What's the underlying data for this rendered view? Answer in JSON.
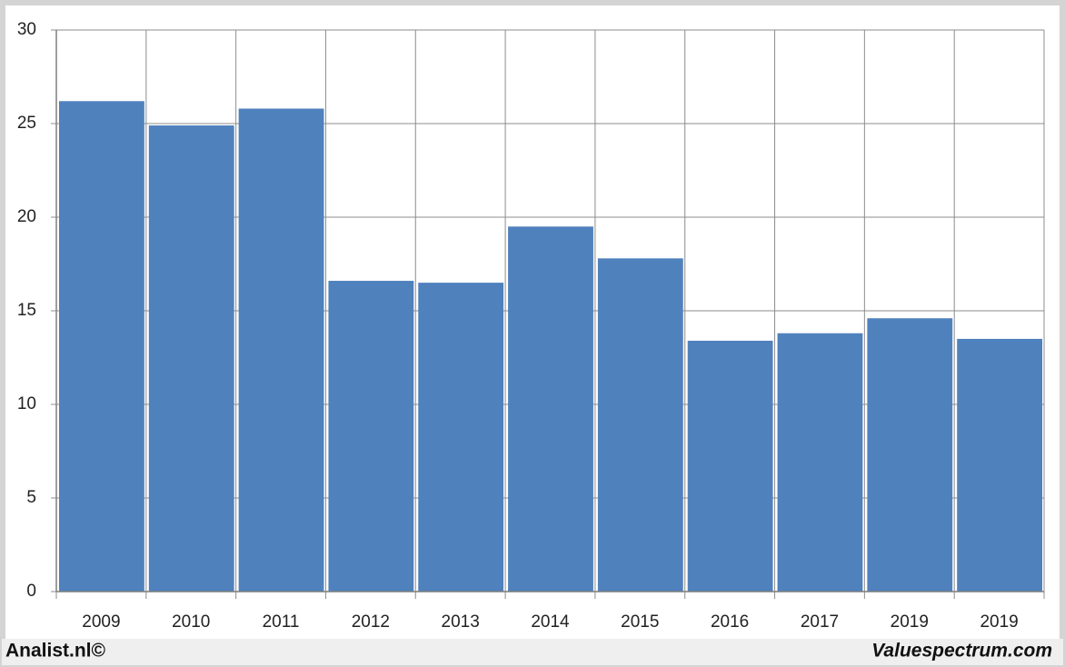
{
  "chart_data": {
    "type": "bar",
    "categories": [
      "2009",
      "2010",
      "2011",
      "2012",
      "2013",
      "2014",
      "2015",
      "2016",
      "2017",
      "2019",
      "2019"
    ],
    "values": [
      26.2,
      24.9,
      25.8,
      16.6,
      16.5,
      19.5,
      17.8,
      13.4,
      13.8,
      14.6,
      13.5
    ],
    "color": "#4f81bd",
    "ylim": [
      0,
      30
    ],
    "yticks": [
      0,
      5,
      10,
      15,
      20,
      25,
      30
    ],
    "grid": true
  },
  "footer_left": "Analist.nl©",
  "footer_right": "Valuespectrum.com"
}
